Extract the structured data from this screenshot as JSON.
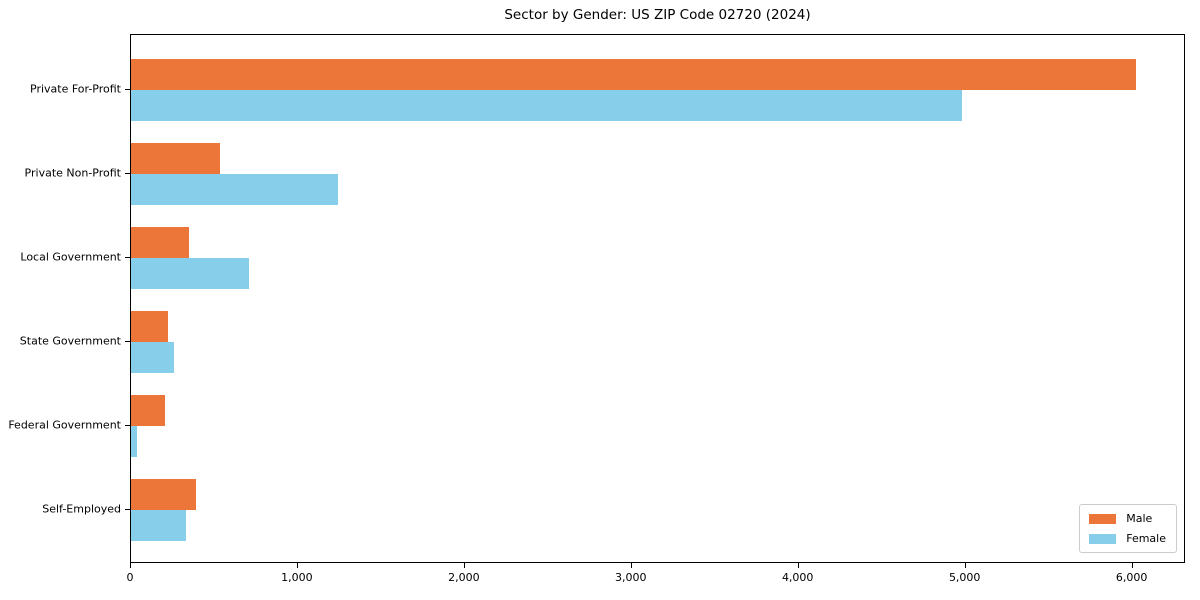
{
  "chart_data": {
    "type": "bar",
    "orientation": "horizontal",
    "title": "Sector by Gender: US ZIP Code 02720 (2024)",
    "categories": [
      "Private For-Profit",
      "Private Non-Profit",
      "Local Government",
      "State Government",
      "Federal Government",
      "Self-Employed"
    ],
    "series": [
      {
        "name": "Male",
        "color": "#ec7639",
        "values": [
          6020,
          530,
          345,
          220,
          205,
          390
        ]
      },
      {
        "name": "Female",
        "color": "#87ceeb",
        "values": [
          4980,
          1240,
          705,
          255,
          35,
          330
        ]
      }
    ],
    "xlabel": "",
    "ylabel": "",
    "xlim": [
      0,
      6320
    ],
    "xticks": [
      0,
      1000,
      2000,
      3000,
      4000,
      5000,
      6000
    ],
    "xtick_labels": [
      "0",
      "1,000",
      "2,000",
      "3,000",
      "4,000",
      "5,000",
      "6,000"
    ],
    "legend": {
      "position": "lower right",
      "entries": [
        "Male",
        "Female"
      ]
    },
    "grid": false,
    "frame": true
  }
}
